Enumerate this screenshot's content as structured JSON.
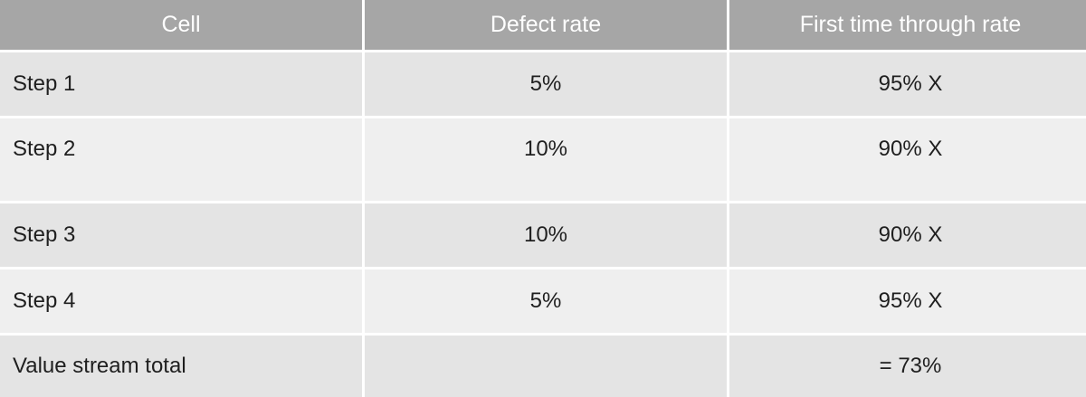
{
  "headers": [
    "Cell",
    "Defect rate",
    "First time through rate"
  ],
  "rows": [
    {
      "cell": "Step 1",
      "defect_rate": "5%",
      "ftt_rate": "95% X"
    },
    {
      "cell": "Step 2",
      "defect_rate": "10%",
      "ftt_rate": "90% X"
    },
    {
      "cell": "Step 3",
      "defect_rate": "10%",
      "ftt_rate": "90% X"
    },
    {
      "cell": "Step 4",
      "defect_rate": "5%",
      "ftt_rate": "95% X"
    },
    {
      "cell": "Value stream total",
      "defect_rate": "",
      "ftt_rate": "= 73%"
    }
  ],
  "colors": {
    "header_bg": "#a6a6a6",
    "row_odd_bg": "#e4e4e4",
    "row_even_bg": "#efefef"
  }
}
